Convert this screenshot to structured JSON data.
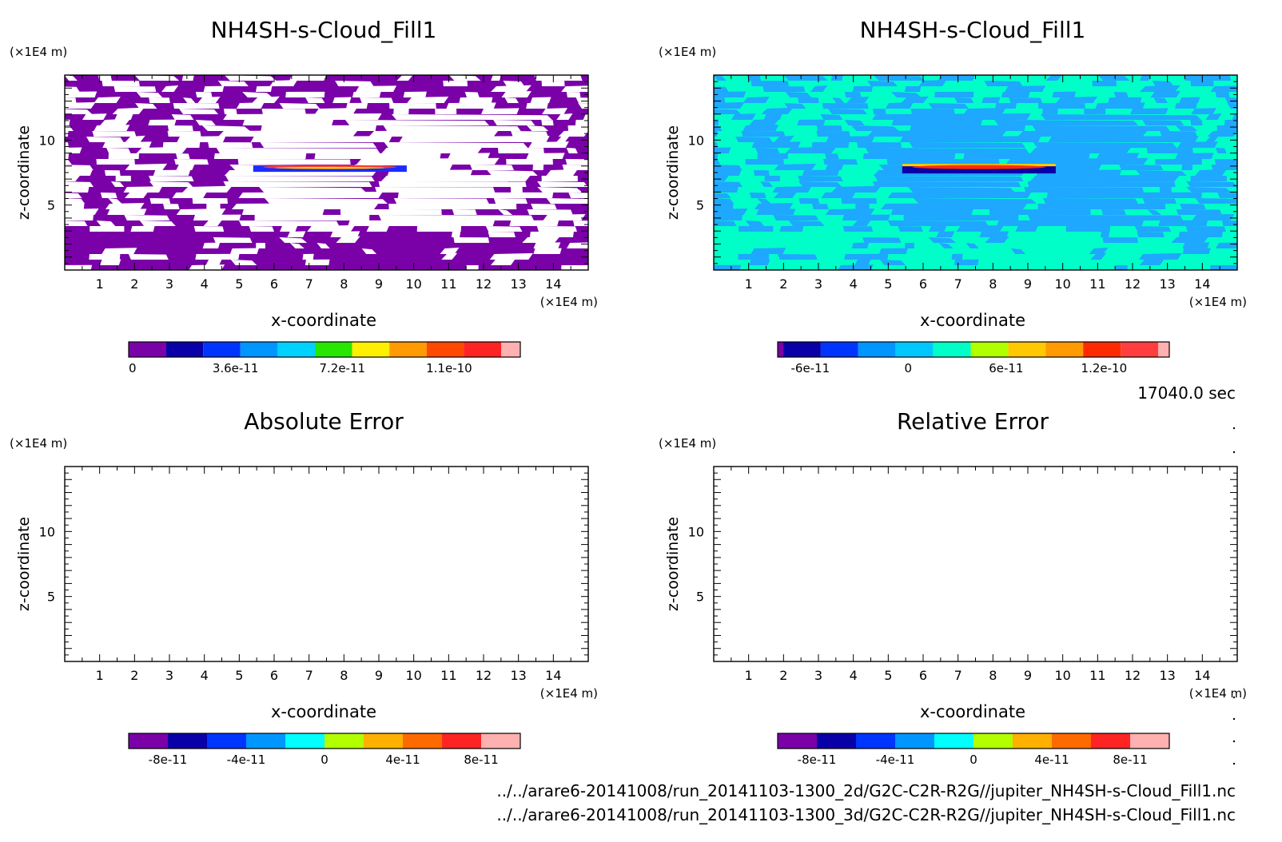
{
  "chart_data": [
    {
      "type": "heatmap",
      "title": "NH4SH-s-Cloud_Fill1",
      "xlabel": "x-coordinate",
      "ylabel": "z-coordinate",
      "x_unit": "(×1E4 m)",
      "y_unit": "(×1E4 m)",
      "x_ticks": [
        "1",
        "2",
        "3",
        "4",
        "5",
        "6",
        "7",
        "8",
        "9",
        "10",
        "11",
        "12",
        "13",
        "14"
      ],
      "y_ticks": [
        "5",
        "10"
      ],
      "xlim": [
        0,
        15
      ],
      "ylim": [
        0,
        15
      ],
      "field_colors": {
        "background": "#7a00a8",
        "stripe": "#ffffff"
      },
      "feature": {
        "x_range": [
          5.4,
          9.8
        ],
        "z": 7.8,
        "note": "thin cloud layer"
      },
      "colorbar": {
        "colors": [
          "#7a00a8",
          "#0a00a8",
          "#0034ff",
          "#0096ff",
          "#00d2ff",
          "#27e600",
          "#ffef00",
          "#ff9a00",
          "#ff4800",
          "#ff2424",
          "#ffb0b0"
        ],
        "tick_labels": [
          "0",
          "3.6e-11",
          "7.2e-11",
          "1.1e-10"
        ],
        "tick_positions": [
          0,
          3,
          6,
          9
        ]
      }
    },
    {
      "type": "heatmap",
      "title": "NH4SH-s-Cloud_Fill1",
      "xlabel": "x-coordinate",
      "ylabel": "z-coordinate",
      "x_unit": "(×1E4 m)",
      "y_unit": "(×1E4 m)",
      "x_ticks": [
        "1",
        "2",
        "3",
        "4",
        "5",
        "6",
        "7",
        "8",
        "9",
        "10",
        "11",
        "12",
        "13",
        "14"
      ],
      "y_ticks": [
        "5",
        "10"
      ],
      "xlim": [
        0,
        15
      ],
      "ylim": [
        0,
        15
      ],
      "field_colors": {
        "background": "#00ffc8",
        "stripe": "#1ea8ff"
      },
      "feature": {
        "x_range": [
          5.4,
          9.8
        ],
        "z": 7.8,
        "note": "thin cloud layer"
      },
      "colorbar": {
        "colors": [
          "#7a00a8",
          "#0a00a8",
          "#0034ff",
          "#0096ff",
          "#00c8ff",
          "#00ffc8",
          "#b2ff00",
          "#ffc800",
          "#ff9a00",
          "#ff2b00",
          "#ff3f3f",
          "#ffb0b0"
        ],
        "tick_labels": [
          "-6e-11",
          "0",
          "6e-11",
          "1.2e-10"
        ],
        "tick_positions": [
          1,
          4,
          7,
          10
        ]
      }
    },
    {
      "type": "heatmap",
      "title": "Absolute Error",
      "xlabel": "x-coordinate",
      "ylabel": "z-coordinate",
      "x_unit": "(×1E4 m)",
      "y_unit": "(×1E4 m)",
      "x_ticks": [
        "1",
        "2",
        "3",
        "4",
        "5",
        "6",
        "7",
        "8",
        "9",
        "10",
        "11",
        "12",
        "13",
        "14"
      ],
      "y_ticks": [
        "5",
        "10"
      ],
      "xlim": [
        0,
        15
      ],
      "ylim": [
        0,
        15
      ],
      "field_colors": {
        "background": "#ffffff",
        "stripe": null
      },
      "colorbar": {
        "colors": [
          "#7a00a8",
          "#0a00a8",
          "#0034ff",
          "#0096ff",
          "#00ffff",
          "#b2ff00",
          "#ffb000",
          "#ff6a00",
          "#ff2424",
          "#ffb0b0"
        ],
        "tick_labels": [
          "-8e-11",
          "-4e-11",
          "0",
          "4e-11",
          "8e-11"
        ],
        "tick_positions": [
          1,
          3,
          5,
          7,
          9
        ]
      }
    },
    {
      "type": "heatmap",
      "title": "Relative Error",
      "xlabel": "x-coordinate",
      "ylabel": "z-coordinate",
      "x_unit": "(×1E4 m)",
      "y_unit": "(×1E4 m)",
      "x_ticks": [
        "1",
        "2",
        "3",
        "4",
        "5",
        "6",
        "7",
        "8",
        "9",
        "10",
        "11",
        "12",
        "13",
        "14"
      ],
      "y_ticks": [
        "5",
        "10"
      ],
      "xlim": [
        0,
        15
      ],
      "ylim": [
        0,
        15
      ],
      "field_colors": {
        "background": "#ffffff",
        "stripe": null
      },
      "colorbar": {
        "colors": [
          "#7a00a8",
          "#0a00a8",
          "#0034ff",
          "#0096ff",
          "#00ffff",
          "#b2ff00",
          "#ffb000",
          "#ff6a00",
          "#ff2424",
          "#ffb0b0"
        ],
        "tick_labels": [
          "-8e-11",
          "-4e-11",
          "0",
          "4e-11",
          "8e-11"
        ],
        "tick_positions": [
          1,
          3,
          5,
          7,
          9
        ]
      }
    }
  ],
  "time_label": "17040.0 sec",
  "files": [
    "../../arare6-20141008/run_20141103-1300_2d/G2C-C2R-R2G//jupiter_NH4SH-s-Cloud_Fill1.nc",
    "../../arare6-20141008/run_20141103-1300_3d/G2C-C2R-R2G//jupiter_NH4SH-s-Cloud_Fill1.nc"
  ]
}
